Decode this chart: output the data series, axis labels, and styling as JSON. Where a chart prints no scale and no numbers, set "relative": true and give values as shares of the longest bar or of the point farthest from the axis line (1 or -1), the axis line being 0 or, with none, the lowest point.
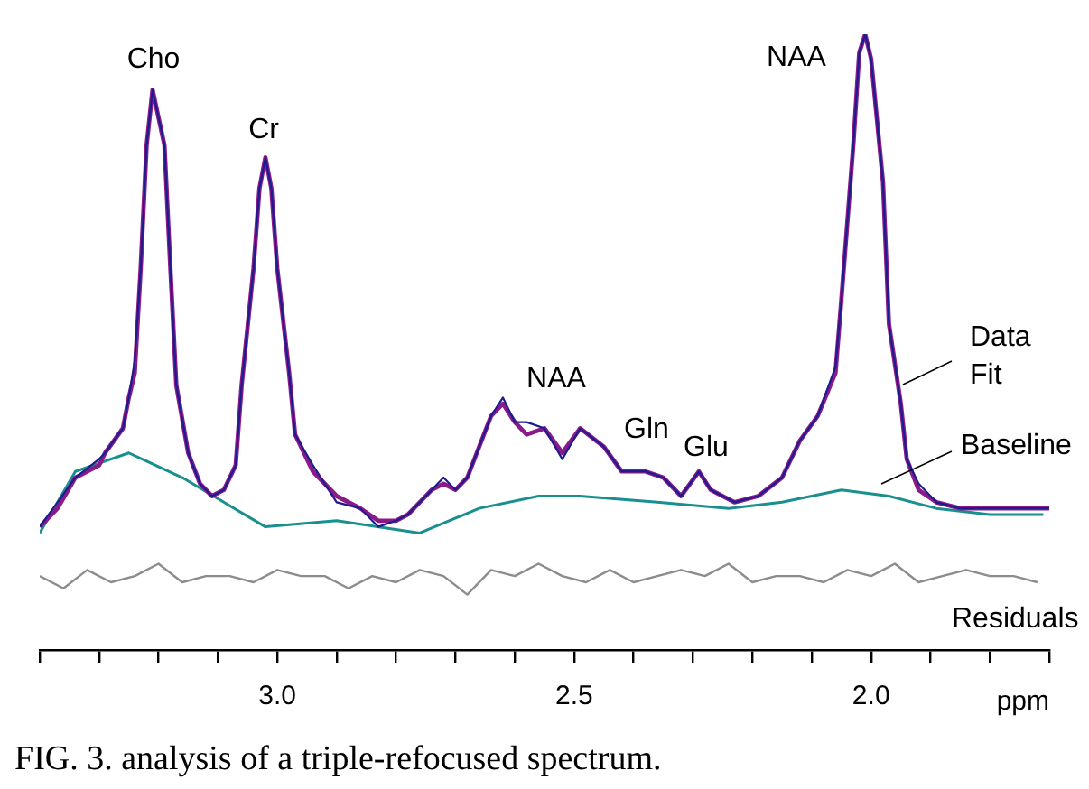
{
  "chart_data": {
    "type": "line",
    "relative": true,
    "legend": false,
    "xlabel": "ppm",
    "xlim": [
      3.4,
      1.7
    ],
    "xticks": [
      {
        "value": 3.4,
        "label": null
      },
      {
        "value": 3.3,
        "label": null
      },
      {
        "value": 3.2,
        "label": null
      },
      {
        "value": 3.1,
        "label": null
      },
      {
        "value": 3.0,
        "label": "3.0"
      },
      {
        "value": 2.9,
        "label": null
      },
      {
        "value": 2.8,
        "label": null
      },
      {
        "value": 2.7,
        "label": null
      },
      {
        "value": 2.6,
        "label": null
      },
      {
        "value": 2.5,
        "label": "2.5"
      },
      {
        "value": 2.4,
        "label": null
      },
      {
        "value": 2.3,
        "label": null
      },
      {
        "value": 2.2,
        "label": null
      },
      {
        "value": 2.1,
        "label": null
      },
      {
        "value": 2.0,
        "label": "2.0"
      },
      {
        "value": 1.9,
        "label": null
      },
      {
        "value": 1.8,
        "label": null
      },
      {
        "value": 1.7,
        "label": null
      }
    ],
    "series": [
      {
        "name": "Data",
        "color": "#1c1c8f",
        "x": [
          3.4,
          3.37,
          3.34,
          3.3,
          3.29,
          3.26,
          3.25,
          3.24,
          3.23,
          3.22,
          3.21,
          3.19,
          3.18,
          3.17,
          3.15,
          3.13,
          3.11,
          3.09,
          3.07,
          3.06,
          3.04,
          3.03,
          3.02,
          3.01,
          3.0,
          2.98,
          2.97,
          2.94,
          2.9,
          2.86,
          2.83,
          2.8,
          2.78,
          2.76,
          2.74,
          2.72,
          2.7,
          2.68,
          2.66,
          2.64,
          2.62,
          2.6,
          2.58,
          2.55,
          2.52,
          2.49,
          2.45,
          2.42,
          2.38,
          2.35,
          2.32,
          2.29,
          2.27,
          2.23,
          2.19,
          2.15,
          2.12,
          2.09,
          2.06,
          2.05,
          2.03,
          2.02,
          2.01,
          2.0,
          1.98,
          1.97,
          1.95,
          1.94,
          1.92,
          1.89,
          1.85,
          1.8,
          1.76,
          1.7
        ],
        "values": [
          0.2,
          0.24,
          0.28,
          0.31,
          0.32,
          0.36,
          0.41,
          0.47,
          0.62,
          0.82,
          0.91,
          0.82,
          0.62,
          0.43,
          0.32,
          0.27,
          0.25,
          0.26,
          0.3,
          0.43,
          0.62,
          0.75,
          0.8,
          0.75,
          0.62,
          0.45,
          0.35,
          0.3,
          0.24,
          0.23,
          0.2,
          0.21,
          0.22,
          0.24,
          0.26,
          0.28,
          0.26,
          0.28,
          0.33,
          0.38,
          0.41,
          0.37,
          0.37,
          0.36,
          0.31,
          0.36,
          0.33,
          0.29,
          0.29,
          0.28,
          0.25,
          0.29,
          0.26,
          0.24,
          0.25,
          0.28,
          0.34,
          0.38,
          0.46,
          0.57,
          0.82,
          0.97,
          1,
          0.96,
          0.76,
          0.53,
          0.4,
          0.31,
          0.27,
          0.24,
          0.23,
          0.23,
          0.23,
          0.23
        ]
      },
      {
        "name": "Fit",
        "color": "#8a1a8a",
        "x": [
          3.4,
          3.37,
          3.34,
          3.3,
          3.29,
          3.26,
          3.25,
          3.24,
          3.23,
          3.22,
          3.21,
          3.19,
          3.18,
          3.17,
          3.15,
          3.13,
          3.11,
          3.09,
          3.07,
          3.06,
          3.04,
          3.03,
          3.02,
          3.01,
          3.0,
          2.98,
          2.97,
          2.94,
          2.9,
          2.86,
          2.83,
          2.8,
          2.78,
          2.76,
          2.74,
          2.72,
          2.7,
          2.68,
          2.66,
          2.64,
          2.62,
          2.6,
          2.58,
          2.55,
          2.52,
          2.49,
          2.45,
          2.42,
          2.38,
          2.35,
          2.32,
          2.29,
          2.27,
          2.23,
          2.19,
          2.15,
          2.12,
          2.09,
          2.06,
          2.05,
          2.03,
          2.02,
          2.01,
          2.0,
          1.98,
          1.97,
          1.95,
          1.94,
          1.92,
          1.89,
          1.85,
          1.8,
          1.76,
          1.7
        ],
        "values": [
          0.2,
          0.23,
          0.28,
          0.3,
          0.32,
          0.36,
          0.41,
          0.45,
          0.62,
          0.82,
          0.91,
          0.82,
          0.62,
          0.43,
          0.32,
          0.27,
          0.25,
          0.26,
          0.3,
          0.43,
          0.62,
          0.75,
          0.8,
          0.75,
          0.62,
          0.45,
          0.35,
          0.29,
          0.25,
          0.23,
          0.21,
          0.21,
          0.22,
          0.24,
          0.26,
          0.27,
          0.26,
          0.28,
          0.33,
          0.38,
          0.4,
          0.37,
          0.35,
          0.36,
          0.32,
          0.36,
          0.33,
          0.29,
          0.29,
          0.28,
          0.25,
          0.29,
          0.26,
          0.24,
          0.25,
          0.28,
          0.34,
          0.38,
          0.45,
          0.57,
          0.82,
          0.97,
          1,
          0.96,
          0.76,
          0.53,
          0.4,
          0.31,
          0.26,
          0.24,
          0.23,
          0.23,
          0.23,
          0.23
        ]
      },
      {
        "name": "Baseline",
        "color": "#1a8f8f",
        "x": [
          3.4,
          3.34,
          3.25,
          3.16,
          3.09,
          3.02,
          2.9,
          2.76,
          2.66,
          2.56,
          2.49,
          2.36,
          2.24,
          2.15,
          2.05,
          1.97,
          1.89,
          1.8,
          1.71
        ],
        "values": [
          0.19,
          0.29,
          0.32,
          0.28,
          0.24,
          0.2,
          0.21,
          0.19,
          0.23,
          0.25,
          0.25,
          0.24,
          0.23,
          0.24,
          0.26,
          0.25,
          0.23,
          0.22,
          0.22
        ]
      },
      {
        "name": "Residuals",
        "color": "#8c8c8c",
        "x": [
          3.4,
          3.36,
          3.32,
          3.28,
          3.24,
          3.2,
          3.16,
          3.12,
          3.08,
          3.04,
          3.0,
          2.96,
          2.92,
          2.88,
          2.84,
          2.8,
          2.76,
          2.72,
          2.68,
          2.64,
          2.6,
          2.56,
          2.52,
          2.48,
          2.44,
          2.4,
          2.36,
          2.32,
          2.28,
          2.24,
          2.2,
          2.16,
          2.12,
          2.08,
          2.04,
          2.0,
          1.96,
          1.92,
          1.88,
          1.84,
          1.8,
          1.76,
          1.72
        ],
        "values": [
          0.12,
          0.1,
          0.13,
          0.11,
          0.12,
          0.14,
          0.11,
          0.12,
          0.12,
          0.11,
          0.13,
          0.12,
          0.12,
          0.1,
          0.12,
          0.11,
          0.13,
          0.12,
          0.09,
          0.13,
          0.12,
          0.14,
          0.12,
          0.11,
          0.13,
          0.11,
          0.12,
          0.13,
          0.12,
          0.14,
          0.11,
          0.12,
          0.12,
          0.11,
          0.13,
          0.12,
          0.14,
          0.11,
          0.12,
          0.13,
          0.12,
          0.12,
          0.11
        ]
      }
    ],
    "annotations": [
      "Cho",
      "Cr",
      "NAA",
      "Gln",
      "Glu",
      "NAA",
      "FIG. 3. analysis of a triple-refocused spectrum."
    ]
  }
}
